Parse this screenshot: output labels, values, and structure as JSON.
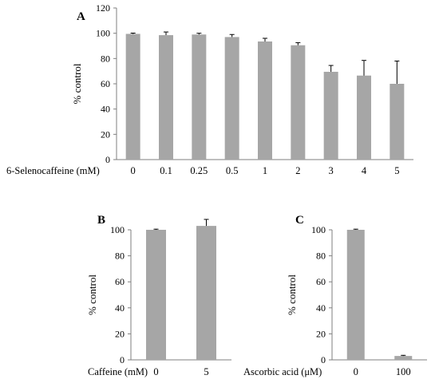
{
  "chart_data": [
    {
      "panel": "A",
      "type": "bar",
      "xlabel": "6-Selenocaffeine (mM)",
      "ylabel": "% control",
      "ylim": [
        0,
        120
      ],
      "yticks": [
        0,
        20,
        40,
        60,
        80,
        100,
        120
      ],
      "categories": [
        "0",
        "0.1",
        "0.25",
        "0.5",
        "1",
        "2",
        "3",
        "4",
        "5"
      ],
      "values": [
        99.5,
        98.5,
        99,
        97,
        93.5,
        90.5,
        69.5,
        66.5,
        60
      ],
      "errors": [
        0.6,
        2.5,
        1,
        2,
        2.5,
        2,
        5,
        12,
        18
      ],
      "bar_color": "#a6a6a6"
    },
    {
      "panel": "B",
      "type": "bar",
      "xlabel": "Caffeine (mM)",
      "ylabel": "% control",
      "ylim": [
        0,
        100
      ],
      "yticks": [
        0,
        20,
        40,
        60,
        80,
        100
      ],
      "categories": [
        "0",
        "5"
      ],
      "values": [
        100,
        103
      ],
      "errors": [
        0.5,
        5
      ],
      "bar_color": "#a6a6a6"
    },
    {
      "panel": "C",
      "type": "bar",
      "xlabel": "Ascorbic acid (μM)",
      "ylabel": "% control",
      "ylim": [
        0,
        100
      ],
      "yticks": [
        0,
        20,
        40,
        60,
        80,
        100
      ],
      "categories": [
        "0",
        "100"
      ],
      "values": [
        100,
        3
      ],
      "errors": [
        0.5,
        0.5
      ],
      "bar_color": "#a6a6a6"
    }
  ]
}
